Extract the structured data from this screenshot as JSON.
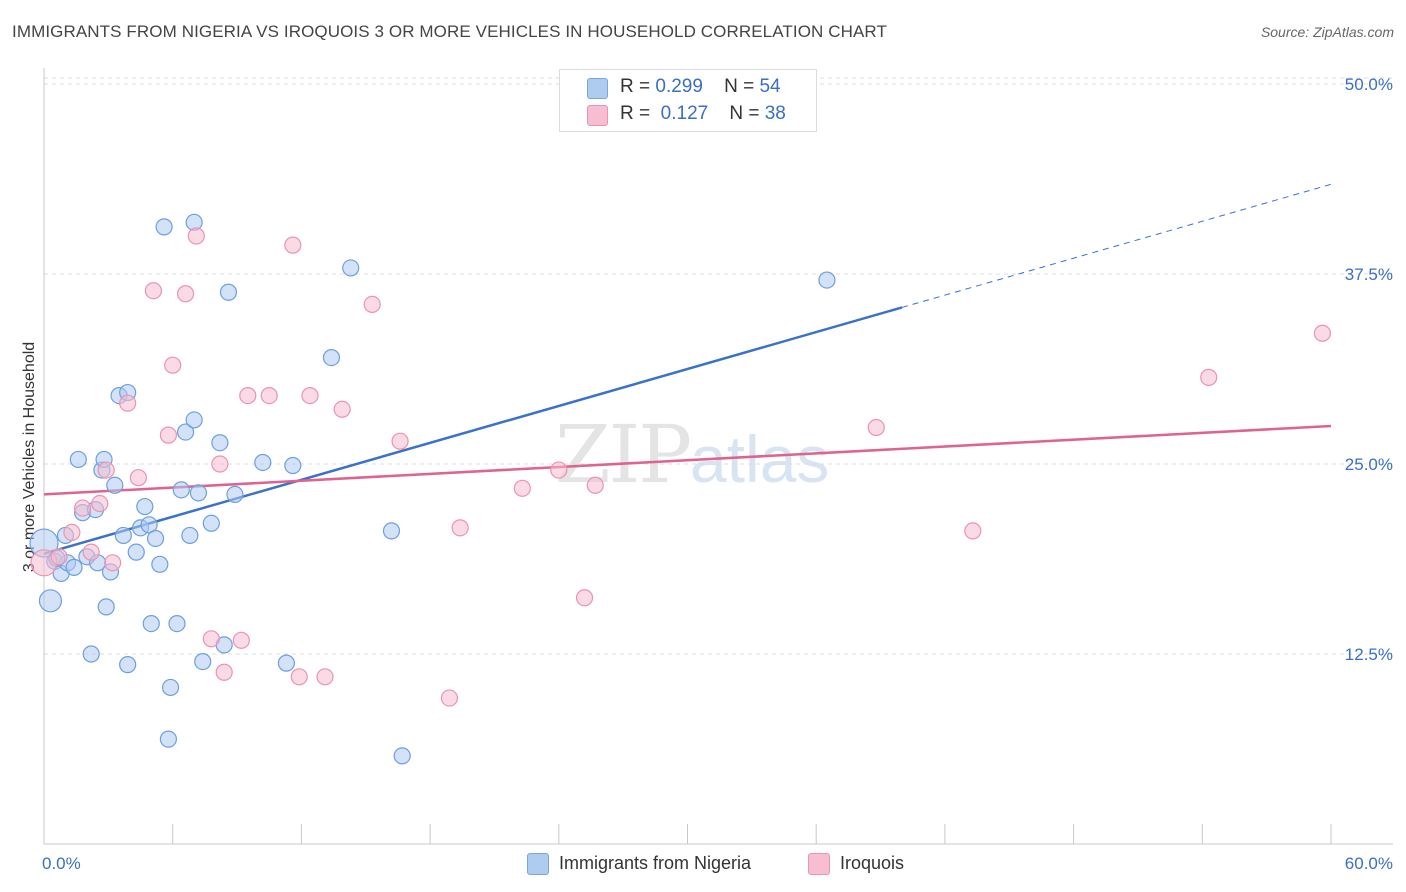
{
  "title": "IMMIGRANTS FROM NIGERIA VS IROQUOIS 3 OR MORE VEHICLES IN HOUSEHOLD CORRELATION CHART",
  "source": "Source: ZipAtlas.com",
  "watermark": {
    "zip": "ZIP",
    "atlas": "atlas"
  },
  "colors": {
    "blue": "#3a72c8",
    "blue_fill": "#aecbf0",
    "pink": "#e0628f",
    "pink_fill": "#f6bed0",
    "axis_text": "#3a6fc4"
  },
  "legend_top": [
    {
      "r_label": "R =",
      "r_value": "0.299",
      "n_label": "N =",
      "n_value": "54"
    },
    {
      "r_label": "R =",
      "r_value": "0.127",
      "n_label": "N =",
      "n_value": "38"
    }
  ],
  "legend_bottom": [
    {
      "label": "Immigrants from Nigeria"
    },
    {
      "label": "Iroquois"
    }
  ],
  "chart_data": {
    "type": "scatter",
    "title": "IMMIGRANTS FROM NIGERIA VS IROQUOIS 3 OR MORE VEHICLES IN HOUSEHOLD CORRELATION CHART",
    "xlabel": "",
    "ylabel": "3 or more Vehicles in Household",
    "xlim": [
      0,
      60
    ],
    "ylim": [
      0,
      50
    ],
    "x_tick_labels": [
      "0.0%",
      "60.0%"
    ],
    "y_tick_values": [
      12.5,
      25.0,
      37.5,
      50.0
    ],
    "y_tick_labels": [
      "12.5%",
      "25.0%",
      "37.5%",
      "50.0%"
    ],
    "grid": true,
    "legend_position": "top-center",
    "series": [
      {
        "name": "Immigrants from Nigeria",
        "r": 0.299,
        "n": 54,
        "trend": {
          "x0": 0,
          "y0": 19.1,
          "x1": 40.0,
          "y1": 35.3,
          "dashed_to_x": 60,
          "dashed_to_y": 43.4
        },
        "points": [
          [
            0.0,
            19.8,
            14
          ],
          [
            0.3,
            16.0,
            11
          ],
          [
            0.5,
            18.6,
            8
          ],
          [
            0.8,
            17.8,
            8
          ],
          [
            1.0,
            20.3,
            8
          ],
          [
            1.1,
            18.5,
            8
          ],
          [
            1.4,
            18.2,
            8
          ],
          [
            1.6,
            25.3,
            8
          ],
          [
            1.8,
            21.8,
            8
          ],
          [
            2.0,
            18.9,
            8
          ],
          [
            2.2,
            12.5,
            8
          ],
          [
            2.4,
            22.0,
            8
          ],
          [
            2.5,
            18.5,
            8
          ],
          [
            2.7,
            24.6,
            8
          ],
          [
            2.8,
            25.3,
            8
          ],
          [
            2.9,
            15.6,
            8
          ],
          [
            3.1,
            17.9,
            8
          ],
          [
            3.3,
            23.6,
            8
          ],
          [
            3.5,
            29.5,
            8
          ],
          [
            3.7,
            20.3,
            8
          ],
          [
            3.9,
            11.8,
            8
          ],
          [
            3.9,
            29.7,
            8
          ],
          [
            4.3,
            19.2,
            8
          ],
          [
            4.5,
            20.8,
            8
          ],
          [
            4.7,
            22.2,
            8
          ],
          [
            4.9,
            21.0,
            8
          ],
          [
            5.0,
            14.5,
            8
          ],
          [
            5.2,
            20.1,
            8
          ],
          [
            5.4,
            18.4,
            8
          ],
          [
            5.6,
            40.6,
            8
          ],
          [
            5.8,
            6.9,
            8
          ],
          [
            5.9,
            10.3,
            8
          ],
          [
            6.2,
            14.5,
            8
          ],
          [
            6.4,
            23.3,
            8
          ],
          [
            6.6,
            27.1,
            8
          ],
          [
            6.8,
            20.3,
            8
          ],
          [
            7.0,
            27.9,
            8
          ],
          [
            7.0,
            40.9,
            8
          ],
          [
            7.2,
            23.1,
            8
          ],
          [
            7.4,
            12.0,
            8
          ],
          [
            7.8,
            21.1,
            8
          ],
          [
            8.2,
            26.4,
            8
          ],
          [
            8.4,
            13.1,
            8
          ],
          [
            8.6,
            36.3,
            8
          ],
          [
            8.9,
            23.0,
            8
          ],
          [
            10.2,
            25.1,
            8
          ],
          [
            11.3,
            11.9,
            8
          ],
          [
            11.6,
            24.9,
            8
          ],
          [
            13.4,
            32.0,
            8
          ],
          [
            14.3,
            37.9,
            8
          ],
          [
            16.2,
            20.6,
            8
          ],
          [
            16.7,
            5.8,
            8
          ],
          [
            36.5,
            37.1,
            8
          ],
          [
            0.6,
            18.8,
            8
          ]
        ]
      },
      {
        "name": "Iroquois",
        "r": 0.127,
        "n": 38,
        "trend": {
          "x0": 0,
          "y0": 23.0,
          "x1": 60,
          "y1": 27.5
        },
        "points": [
          [
            0.0,
            18.5,
            13
          ],
          [
            0.7,
            18.9,
            8
          ],
          [
            1.3,
            20.5,
            8
          ],
          [
            1.8,
            22.1,
            8
          ],
          [
            2.2,
            19.2,
            8
          ],
          [
            2.6,
            22.4,
            8
          ],
          [
            2.9,
            24.6,
            8
          ],
          [
            3.2,
            18.5,
            8
          ],
          [
            3.9,
            29.0,
            8
          ],
          [
            4.4,
            24.1,
            8
          ],
          [
            5.1,
            36.4,
            8
          ],
          [
            5.8,
            26.9,
            8
          ],
          [
            6.0,
            31.5,
            8
          ],
          [
            6.6,
            36.2,
            8
          ],
          [
            7.1,
            40.0,
            8
          ],
          [
            7.8,
            13.5,
            8
          ],
          [
            8.2,
            25.0,
            8
          ],
          [
            8.4,
            11.3,
            8
          ],
          [
            9.2,
            13.4,
            8
          ],
          [
            9.5,
            29.5,
            8
          ],
          [
            10.5,
            29.5,
            8
          ],
          [
            11.6,
            39.4,
            8
          ],
          [
            11.9,
            11.0,
            8
          ],
          [
            12.4,
            29.5,
            8
          ],
          [
            13.1,
            11.0,
            8
          ],
          [
            13.9,
            28.6,
            8
          ],
          [
            15.3,
            35.5,
            8
          ],
          [
            16.6,
            26.5,
            8
          ],
          [
            18.9,
            9.6,
            8
          ],
          [
            19.4,
            20.8,
            8
          ],
          [
            22.3,
            23.4,
            8
          ],
          [
            24.0,
            24.6,
            8
          ],
          [
            25.2,
            16.2,
            8
          ],
          [
            25.7,
            23.6,
            8
          ],
          [
            38.8,
            27.4,
            8
          ],
          [
            43.3,
            20.6,
            8
          ],
          [
            54.3,
            30.7,
            8
          ],
          [
            59.6,
            33.6,
            8
          ]
        ]
      }
    ]
  }
}
